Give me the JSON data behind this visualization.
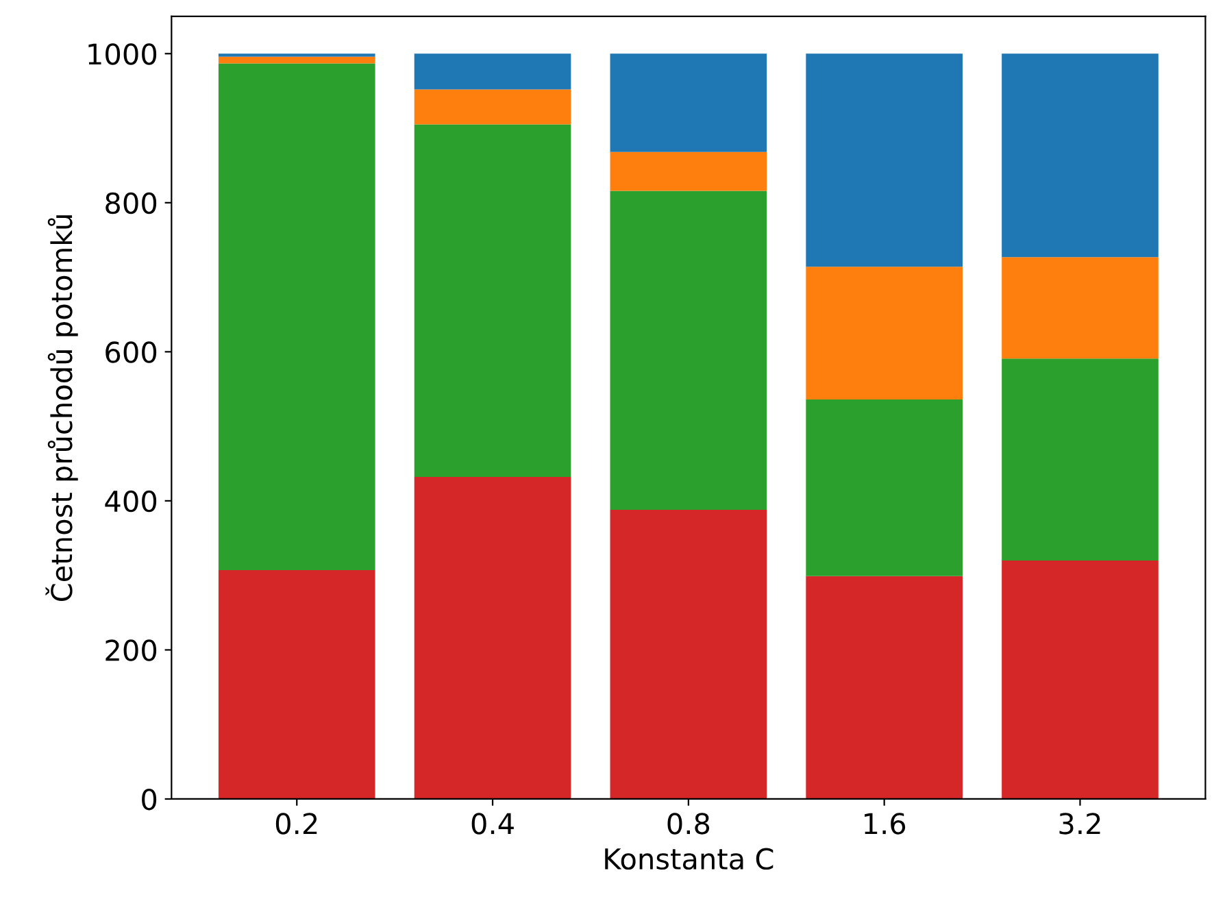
{
  "chart_data": {
    "type": "bar",
    "stacked": true,
    "xlabel": "Konstanta C",
    "ylabel": "Četnost průchodů potomků",
    "categories": [
      "0.2",
      "0.4",
      "0.8",
      "1.6",
      "3.2"
    ],
    "series": [
      {
        "color": "#d62728",
        "values": [
          307,
          432,
          388,
          299,
          320
        ]
      },
      {
        "color": "#2ca02c",
        "values": [
          680,
          473,
          428,
          237,
          271
        ]
      },
      {
        "color": "#ff7f0e",
        "values": [
          9,
          47,
          52,
          178,
          136
        ]
      },
      {
        "color": "#1f77b4",
        "values": [
          4,
          48,
          132,
          286,
          273
        ]
      }
    ],
    "ylim": [
      0,
      1050
    ],
    "yticks": [
      0,
      200,
      400,
      600,
      800,
      1000
    ],
    "grid": false
  }
}
